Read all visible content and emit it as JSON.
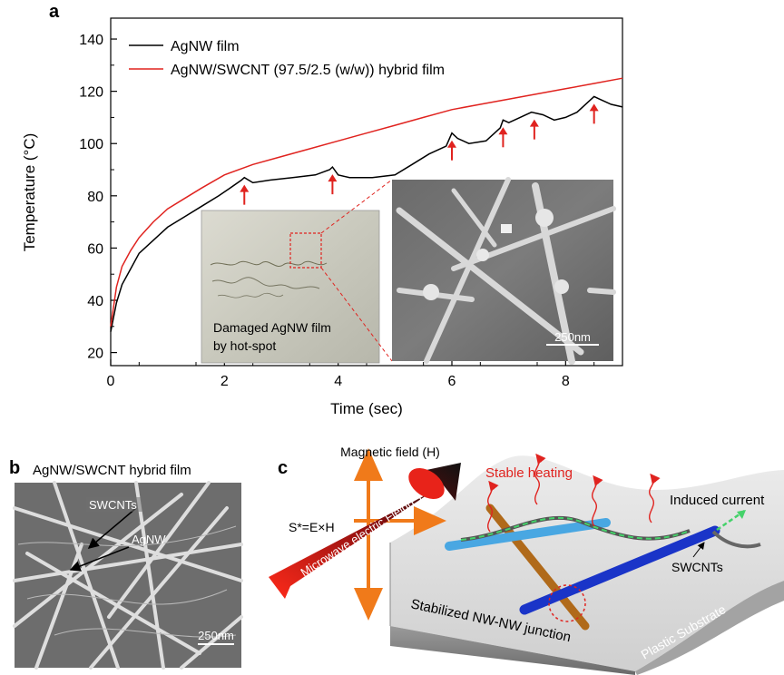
{
  "panel_a": {
    "label": "a",
    "legend": [
      "AgNW film",
      "AgNW/SWCNT (97.5/2.5 (w/w)) hybrid film"
    ],
    "inset_photo_caption_lines": [
      "Damaged AgNW film",
      "by hot-spot"
    ],
    "inset_sem_scalebar": "250nm"
  },
  "panel_b": {
    "label": "b",
    "title": "AgNW/SWCNT  hybrid film",
    "annotations": [
      "SWCNTs",
      "AgNW"
    ],
    "scalebar": "250nm"
  },
  "panel_c": {
    "label": "c",
    "magnetic_field": "Magnetic field (H)",
    "poynting": "S*=E×H",
    "microwave": "Microwave electric Field(E)",
    "stable_heating": "Stable heating",
    "induced_current": "Induced current",
    "swcnts": "SWCNTs",
    "junction": "Stabilized NW-NW junction",
    "substrate": "Plastic Substrate"
  },
  "colors": {
    "agnw": "#000000",
    "hybrid": "#e0231f",
    "hot_spot_arrow": "#e0231f"
  },
  "chart_data": {
    "type": "line",
    "xlabel": "Time (sec)",
    "ylabel": "Temperature (°C)",
    "xlim": [
      0,
      9
    ],
    "ylim": [
      15,
      148
    ],
    "xticks": [
      0,
      2,
      4,
      6,
      8
    ],
    "yticks": [
      20,
      40,
      60,
      80,
      100,
      120,
      140
    ],
    "grid": false,
    "legend_position": "top-left",
    "series": [
      {
        "name": "AgNW film",
        "color": "#000000",
        "x": [
          0,
          0.1,
          0.2,
          0.35,
          0.5,
          0.75,
          1.0,
          1.3,
          1.6,
          1.9,
          2.1,
          2.3,
          2.35,
          2.5,
          2.8,
          3.2,
          3.6,
          3.85,
          3.9,
          4.0,
          4.2,
          4.6,
          5.0,
          5.3,
          5.6,
          5.9,
          6.0,
          6.1,
          6.3,
          6.6,
          6.85,
          6.9,
          7.0,
          7.2,
          7.4,
          7.6,
          7.8,
          8.0,
          8.2,
          8.4,
          8.5,
          8.6,
          8.8,
          9.0
        ],
        "values": [
          28,
          39,
          46,
          52,
          58,
          63,
          68,
          72,
          76,
          80,
          83,
          86,
          87,
          85,
          86,
          87,
          88,
          90,
          91,
          88,
          87,
          87,
          88,
          92,
          96,
          99,
          104,
          102,
          100,
          101,
          106,
          109,
          108,
          110,
          112,
          111,
          109,
          110,
          112,
          116,
          118,
          117,
          115,
          114
        ]
      },
      {
        "name": "AgNW/SWCNT (97.5/2.5 (w/w)) hybrid film",
        "color": "#e0231f",
        "x": [
          0,
          0.1,
          0.2,
          0.35,
          0.5,
          0.75,
          1.0,
          1.3,
          1.6,
          2.0,
          2.5,
          3.0,
          3.5,
          4.0,
          4.5,
          5.0,
          5.5,
          6.0,
          6.5,
          7.0,
          7.5,
          8.0,
          8.5,
          9.0
        ],
        "values": [
          30,
          45,
          53,
          59,
          64,
          70,
          75,
          79,
          83,
          88,
          92,
          95,
          98,
          101,
          104,
          107,
          110,
          113,
          115,
          117,
          119,
          121,
          123,
          125
        ]
      }
    ],
    "hot_spot_arrows_x": [
      2.35,
      3.9,
      6.0,
      6.9,
      7.45,
      8.5
    ],
    "hot_spot_arrows_y": [
      87,
      91,
      104,
      109,
      112,
      118
    ]
  }
}
